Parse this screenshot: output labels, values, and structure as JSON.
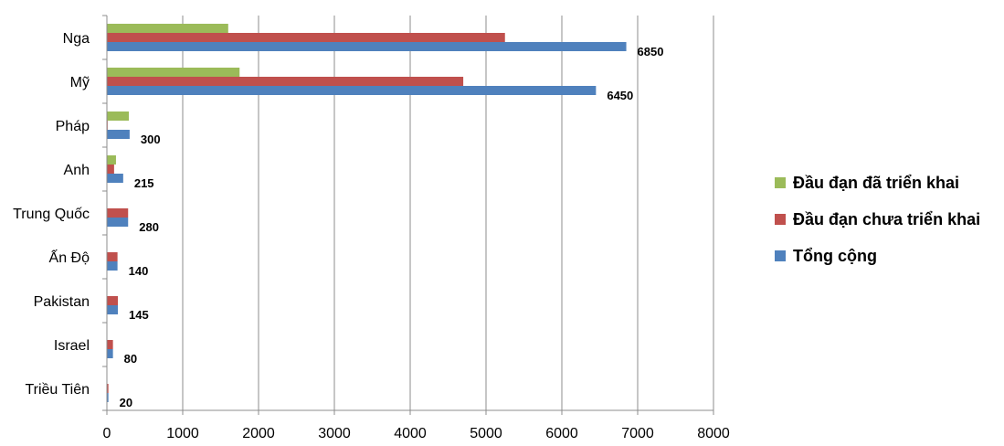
{
  "chart_data": {
    "type": "bar",
    "orientation": "horizontal",
    "categories": [
      "Nga",
      "Mỹ",
      "Pháp",
      "Anh",
      "Trung Quốc",
      "Ấn Độ",
      "Pakistan",
      "Israel",
      "Triều Tiên"
    ],
    "series": [
      {
        "name": "Đầu đạn đã triển khai",
        "color": "#9BBB59",
        "values": [
          1600,
          1750,
          290,
          120,
          0,
          0,
          0,
          0,
          0
        ]
      },
      {
        "name": "Đầu đạn chưa triển khai",
        "color": "#C0504D",
        "values": [
          5250,
          4700,
          10,
          95,
          280,
          140,
          145,
          80,
          20
        ]
      },
      {
        "name": "Tổng cộng",
        "color": "#4F81BD",
        "values": [
          6850,
          6450,
          300,
          215,
          280,
          140,
          145,
          80,
          20
        ]
      }
    ],
    "data_labels": [
      "6850",
      "6450",
      "300",
      "215",
      "280",
      "140",
      "145",
      "80",
      "20"
    ],
    "xlim": [
      0,
      8000
    ],
    "xticks": [
      "0",
      "1000",
      "2000",
      "3000",
      "4000",
      "5000",
      "6000",
      "7000",
      "8000"
    ],
    "grid": true,
    "legend_position": "right"
  }
}
